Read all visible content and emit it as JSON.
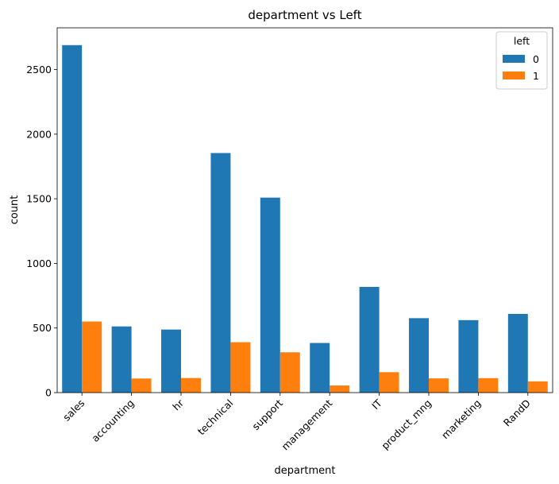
{
  "chart_data": {
    "type": "bar",
    "title": "department vs Left",
    "xlabel": "department",
    "ylabel": "count",
    "categories": [
      "sales",
      "accounting",
      "hr",
      "technical",
      "support",
      "management",
      "IT",
      "product_mng",
      "marketing",
      "RandD"
    ],
    "series": [
      {
        "name": "0",
        "color": "#1f77b4",
        "values": [
          2689,
          512,
          488,
          1854,
          1509,
          384,
          818,
          576,
          561,
          609
        ]
      },
      {
        "name": "1",
        "color": "#ff7f0e",
        "values": [
          550,
          109,
          113,
          390,
          312,
          55,
          158,
          110,
          112,
          87
        ]
      }
    ],
    "yticks": [
      0,
      500,
      1000,
      1500,
      2000,
      2500
    ],
    "ylim": [
      0,
      2823
    ],
    "legend": {
      "title": "left",
      "placement": "top-right"
    },
    "grid": false
  }
}
